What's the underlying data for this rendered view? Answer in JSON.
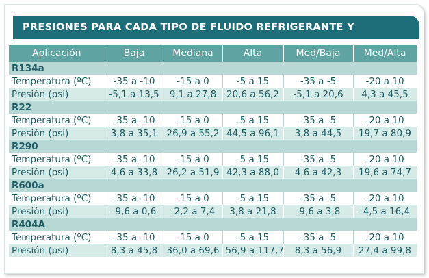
{
  "title": "PRESIONES PARA CADA TIPO DE FLUIDO REFRIGERANTE Y APLICACIÓN",
  "table": {
    "header": [
      "Aplicación",
      "Baja",
      "Mediana",
      "Alta",
      "Med/Baja",
      "Med/Alta"
    ],
    "groups": [
      {
        "name": "R134a",
        "rows": [
          [
            "Temperatura (ºC)",
            "-35 a -10",
            "-15 a 0",
            "-5 a 15",
            "-35 a -5",
            "-20 a 10"
          ],
          [
            "Presión (psi)",
            "-5,1 a 13,5",
            "9,1 a 27,8",
            "20,6 a 56,2",
            "-5,1 a 20,6",
            "4,3 a 45,5"
          ]
        ]
      },
      {
        "name": "R22",
        "rows": [
          [
            "Temperatura (ºC)",
            "-35 a -10",
            "-15 a 0",
            "-5 a 15",
            "-35 a -5",
            "-20 a 10"
          ],
          [
            "Presión (psi)",
            "3,8 a 35,1",
            "26,9 a 55,2",
            "44,5 a 96,1",
            "3,8 a 44,5",
            "19,7 a 80,9"
          ]
        ]
      },
      {
        "name": "R290",
        "rows": [
          [
            "Temperatura (ºC)",
            "-35 a -10",
            "-15 a 0",
            "-5 a 15",
            "-35 a -5",
            "-20 a 10"
          ],
          [
            "Presión (psi)",
            "4,6 a 33,8",
            "26,2 a 51,9",
            "42,3 a 88,0",
            "4,6 a 42,3",
            "19,6 a 74,7"
          ]
        ]
      },
      {
        "name": "R600a",
        "rows": [
          [
            "Temperatura (ºC)",
            "-35 a -10",
            "-15 a 0",
            "-5 a 15",
            "-35 a -5",
            "-20 a 10"
          ],
          [
            "Presión (psi)",
            "-9,6 a 0,6",
            "-2,2 a 7,4",
            "3,8 a 21,8",
            "-9,6 a 3,8",
            "-4,5 a 16,4"
          ]
        ]
      },
      {
        "name": "R404A",
        "rows": [
          [
            "Temperatura (ºC)",
            "-35 a -10",
            "-15 a 0",
            "-5 a 15",
            "-35 a -5",
            "-20 a 10"
          ],
          [
            "Presión (psi)",
            "8,3 a 45,8",
            "36,0 a 69,6",
            "56,9 a 117,7",
            "8,3 a 56,9",
            "27,4 a 99,8"
          ]
        ]
      }
    ]
  }
}
